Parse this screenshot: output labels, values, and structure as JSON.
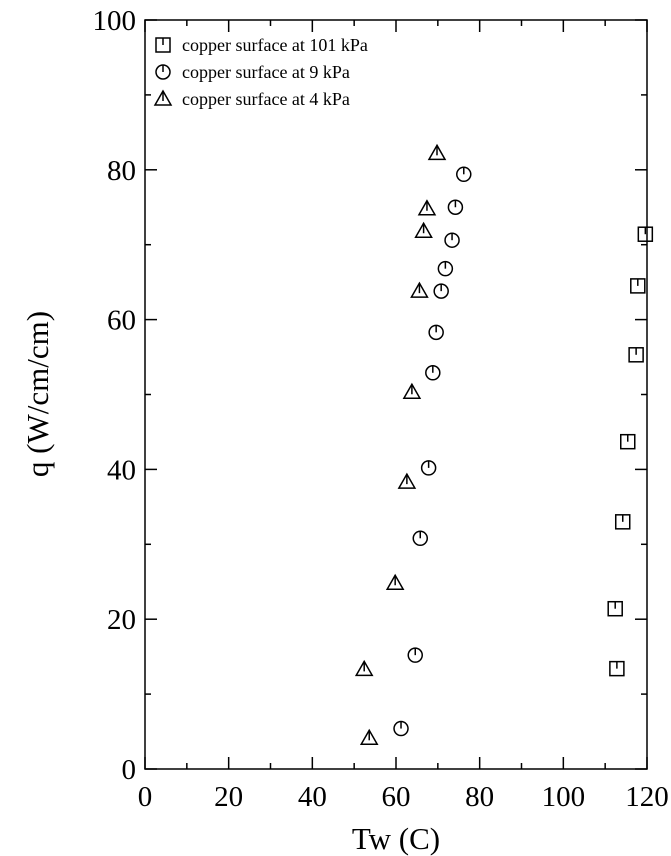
{
  "chart_data": {
    "type": "scatter",
    "xlabel": "Tw (C)",
    "ylabel": "q (W/cm/cm)",
    "xlim": [
      0,
      120
    ],
    "ylim": [
      0,
      100
    ],
    "xticks": [
      0,
      20,
      40,
      60,
      80,
      100,
      120
    ],
    "yticks": [
      0,
      20,
      40,
      60,
      80,
      100
    ],
    "grid": false,
    "legend_position": "top-left",
    "series": [
      {
        "name": "copper surface at 101 kPa",
        "marker": "square",
        "points": [
          [
            112.8,
            13.4
          ],
          [
            112.4,
            21.4
          ],
          [
            114.2,
            33.0
          ],
          [
            115.4,
            43.7
          ],
          [
            117.4,
            55.3
          ],
          [
            117.8,
            64.5
          ],
          [
            119.6,
            71.4
          ]
        ]
      },
      {
        "name": "copper surface at 9 kPa",
        "marker": "circle",
        "points": [
          [
            61.2,
            5.4
          ],
          [
            64.6,
            15.2
          ],
          [
            65.8,
            30.8
          ],
          [
            67.8,
            40.2
          ],
          [
            68.8,
            52.9
          ],
          [
            69.6,
            58.3
          ],
          [
            70.8,
            63.8
          ],
          [
            71.8,
            66.8
          ],
          [
            73.4,
            70.6
          ],
          [
            74.2,
            75.0
          ],
          [
            76.2,
            79.4
          ]
        ]
      },
      {
        "name": "copper surface at 4 kPa",
        "marker": "triangle",
        "points": [
          [
            53.6,
            4.1
          ],
          [
            52.4,
            13.3
          ],
          [
            59.8,
            24.8
          ],
          [
            62.6,
            38.3
          ],
          [
            63.8,
            50.3
          ],
          [
            65.6,
            63.8
          ],
          [
            66.6,
            71.8
          ],
          [
            67.4,
            74.8
          ],
          [
            69.8,
            82.2
          ]
        ]
      }
    ]
  }
}
